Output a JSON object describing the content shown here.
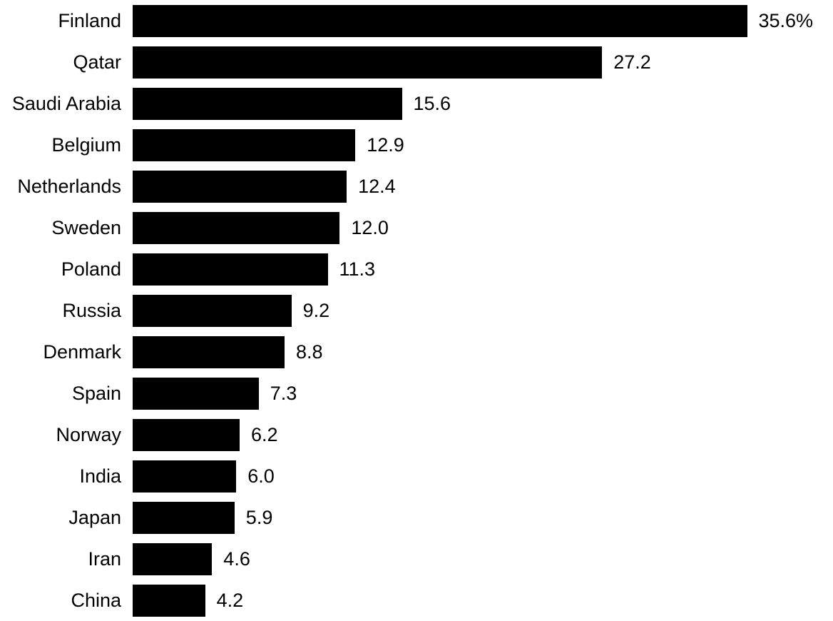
{
  "chart_data": {
    "type": "bar",
    "orientation": "horizontal",
    "title": "",
    "xlabel": "",
    "ylabel": "",
    "categories": [
      "Finland",
      "Qatar",
      "Saudi Arabia",
      "Belgium",
      "Netherlands",
      "Sweden",
      "Poland",
      "Russia",
      "Denmark",
      "Spain",
      "Norway",
      "India",
      "Japan",
      "Iran",
      "China"
    ],
    "values": [
      35.6,
      27.2,
      15.6,
      12.9,
      12.4,
      12.0,
      11.3,
      9.2,
      8.8,
      7.3,
      6.2,
      6.0,
      5.9,
      4.6,
      4.2
    ],
    "value_labels": [
      "35.6%",
      "27.2",
      "15.6",
      "12.9",
      "12.4",
      "12.0",
      "11.3",
      "9.2",
      "8.8",
      "7.3",
      "6.2",
      "6.0",
      "5.9",
      "4.6",
      "4.2"
    ],
    "unit": "%",
    "xlim": [
      0,
      40.5
    ],
    "grid": false,
    "legend": false,
    "bar_color": "#000000",
    "text_color": "#000000",
    "background_color": "#ffffff"
  }
}
